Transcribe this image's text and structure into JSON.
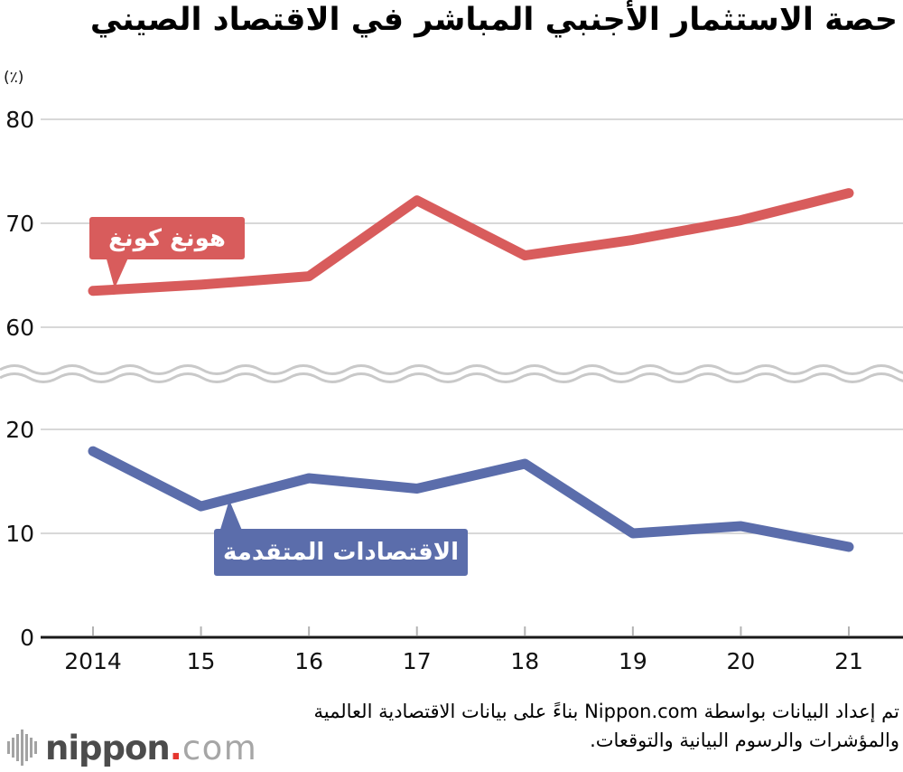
{
  "header": {
    "title": "حصة الاستثمار الأجنبي المباشر في الاقتصاد الصيني"
  },
  "chart_data": {
    "type": "line",
    "title": "حصة الاستثمار الأجنبي المباشر في الاقتصاد الصيني",
    "unit_label": "(٪)",
    "xlabel": "",
    "ylabel": "(٪)",
    "categories": [
      "2014",
      "15",
      "16",
      "17",
      "18",
      "19",
      "20",
      "21"
    ],
    "series": [
      {
        "name": "هونغ كونغ",
        "axis": "upper",
        "color": "#d85c5c",
        "values": [
          63.5,
          64.1,
          64.9,
          72.2,
          66.9,
          68.4,
          70.3,
          72.9
        ]
      },
      {
        "name": "الاقتصادات المتقدمة",
        "axis": "lower",
        "color": "#5b6dab",
        "values": [
          17.9,
          12.6,
          15.3,
          14.3,
          16.7,
          10.0,
          10.7,
          8.7
        ]
      }
    ],
    "upper_axis": {
      "ticks": [
        80,
        70,
        60
      ],
      "range": [
        60,
        80
      ]
    },
    "lower_axis": {
      "ticks": [
        20,
        10,
        0
      ],
      "range": [
        0,
        20
      ]
    },
    "broken_axis": true,
    "grid": true,
    "legend_position": "inline-callouts"
  },
  "colors": {
    "hong_kong_red": "#d85c5c",
    "advanced_blue": "#5b6dab",
    "gridline": "#cccccc",
    "wave_break": "#c9c9c9",
    "axis": "#1a1a1a",
    "tick": "#b3b3b3",
    "logo_gray": "#4c4c4c",
    "logo_light_gray": "#a6a6a6",
    "logo_red": "#e5352e"
  },
  "footer": {
    "line1": "تم إعداد البيانات بواسطة Nippon.com بناءً على بيانات الاقتصادية العالمية",
    "line2": "والمؤشرات والرسوم البيانية والتوقعات.",
    "logo": {
      "name": "nippon",
      "dot": ".",
      "tld": "com"
    }
  }
}
